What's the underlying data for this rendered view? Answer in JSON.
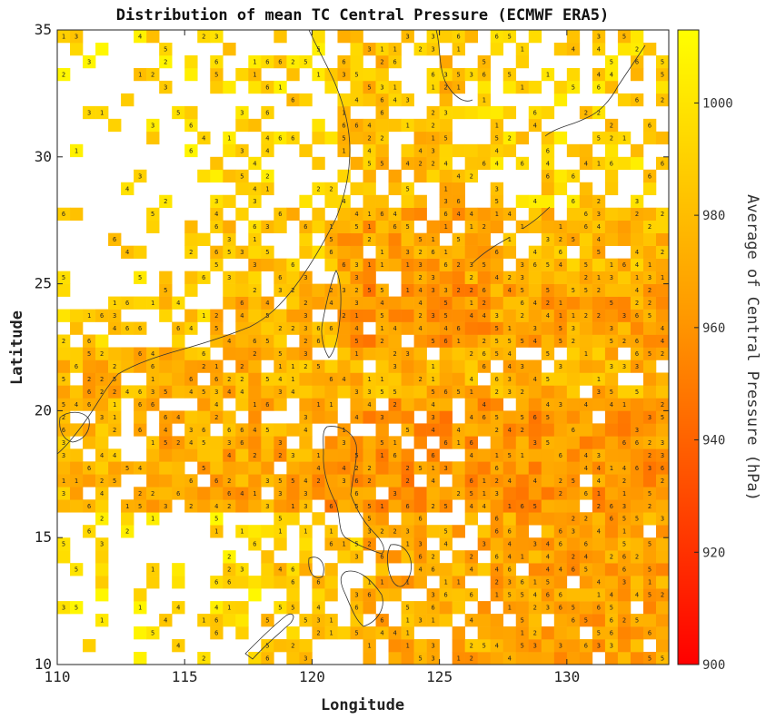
{
  "chart_data": {
    "type": "heatmap",
    "title": "Distribution of mean TC Central Pressure (ECMWF ERA5)",
    "xlabel": "Longitude",
    "ylabel": "Latitude",
    "xlim": [
      110,
      134
    ],
    "ylim": [
      10,
      35
    ],
    "x_ticks": [
      "110",
      "115",
      "120",
      "125",
      "130"
    ],
    "y_ticks": [
      "10",
      "15",
      "20",
      "25",
      "30",
      "35"
    ],
    "cell_size_deg": 0.5,
    "colorbar": {
      "label": "Average of Central Pressure (hPa)",
      "range": [
        900,
        1013
      ],
      "ticks": [
        "900",
        "920",
        "940",
        "960",
        "980",
        "1000"
      ],
      "colors": [
        "#ff0000",
        "#ff9900",
        "#ffff00"
      ]
    },
    "grid": false,
    "regions": [
      {
        "lon": [
          110.0,
          134.0
        ],
        "lat": [
          20.5,
          22.5
        ],
        "mean_pressure": 975,
        "coverage": 0.85
      },
      {
        "lon": [
          110.0,
          113.5
        ],
        "lat": [
          16.0,
          20.5
        ],
        "mean_pressure": 978,
        "coverage": 0.75
      },
      {
        "lon": [
          113.5,
          120.0
        ],
        "lat": [
          16.0,
          20.5
        ],
        "mean_pressure": 970,
        "coverage": 0.85
      },
      {
        "lon": [
          120.0,
          126.0
        ],
        "lat": [
          16.0,
          20.5
        ],
        "mean_pressure": 960,
        "coverage": 0.85
      },
      {
        "lon": [
          126.0,
          134.0
        ],
        "lat": [
          16.0,
          20.5
        ],
        "mean_pressure": 962,
        "coverage": 0.95
      },
      {
        "lon": [
          110.0,
          116.0
        ],
        "lat": [
          22.5,
          25.0
        ],
        "mean_pressure": 985,
        "coverage": 0.55
      },
      {
        "lon": [
          116.0,
          121.0
        ],
        "lat": [
          22.5,
          25.0
        ],
        "mean_pressure": 975,
        "coverage": 0.75
      },
      {
        "lon": [
          121.0,
          127.0
        ],
        "lat": [
          22.5,
          25.0
        ],
        "mean_pressure": 960,
        "coverage": 0.95
      },
      {
        "lon": [
          127.0,
          134.0
        ],
        "lat": [
          22.5,
          25.0
        ],
        "mean_pressure": 968,
        "coverage": 0.95
      },
      {
        "lon": [
          110.0,
          115.0
        ],
        "lat": [
          25.0,
          28.0
        ],
        "mean_pressure": 992,
        "coverage": 0.2
      },
      {
        "lon": [
          115.0,
          121.0
        ],
        "lat": [
          25.0,
          28.0
        ],
        "mean_pressure": 982,
        "coverage": 0.6
      },
      {
        "lon": [
          121.0,
          127.0
        ],
        "lat": [
          25.0,
          28.0
        ],
        "mean_pressure": 968,
        "coverage": 0.95
      },
      {
        "lon": [
          127.0,
          134.0
        ],
        "lat": [
          25.0,
          28.0
        ],
        "mean_pressure": 978,
        "coverage": 0.85
      },
      {
        "lon": [
          110.0,
          116.0
        ],
        "lat": [
          28.0,
          35.0
        ],
        "mean_pressure": 995,
        "coverage": 0.18
      },
      {
        "lon": [
          116.0,
          121.0
        ],
        "lat": [
          28.0,
          35.0
        ],
        "mean_pressure": 992,
        "coverage": 0.35
      },
      {
        "lon": [
          121.0,
          126.0
        ],
        "lat": [
          28.0,
          35.0
        ],
        "mean_pressure": 980,
        "coverage": 0.7
      },
      {
        "lon": [
          126.0,
          134.0
        ],
        "lat": [
          28.0,
          35.0
        ],
        "mean_pressure": 990,
        "coverage": 0.45
      },
      {
        "lon": [
          110.0,
          118.0
        ],
        "lat": [
          10.0,
          16.0
        ],
        "mean_pressure": 995,
        "coverage": 0.3
      },
      {
        "lon": [
          118.0,
          122.0
        ],
        "lat": [
          10.0,
          16.0
        ],
        "mean_pressure": 985,
        "coverage": 0.45
      },
      {
        "lon": [
          122.0,
          127.0
        ],
        "lat": [
          10.0,
          16.0
        ],
        "mean_pressure": 972,
        "coverage": 0.75
      },
      {
        "lon": [
          127.0,
          134.0
        ],
        "lat": [
          10.0,
          16.0
        ],
        "mean_pressure": 968,
        "coverage": 0.95
      }
    ]
  }
}
